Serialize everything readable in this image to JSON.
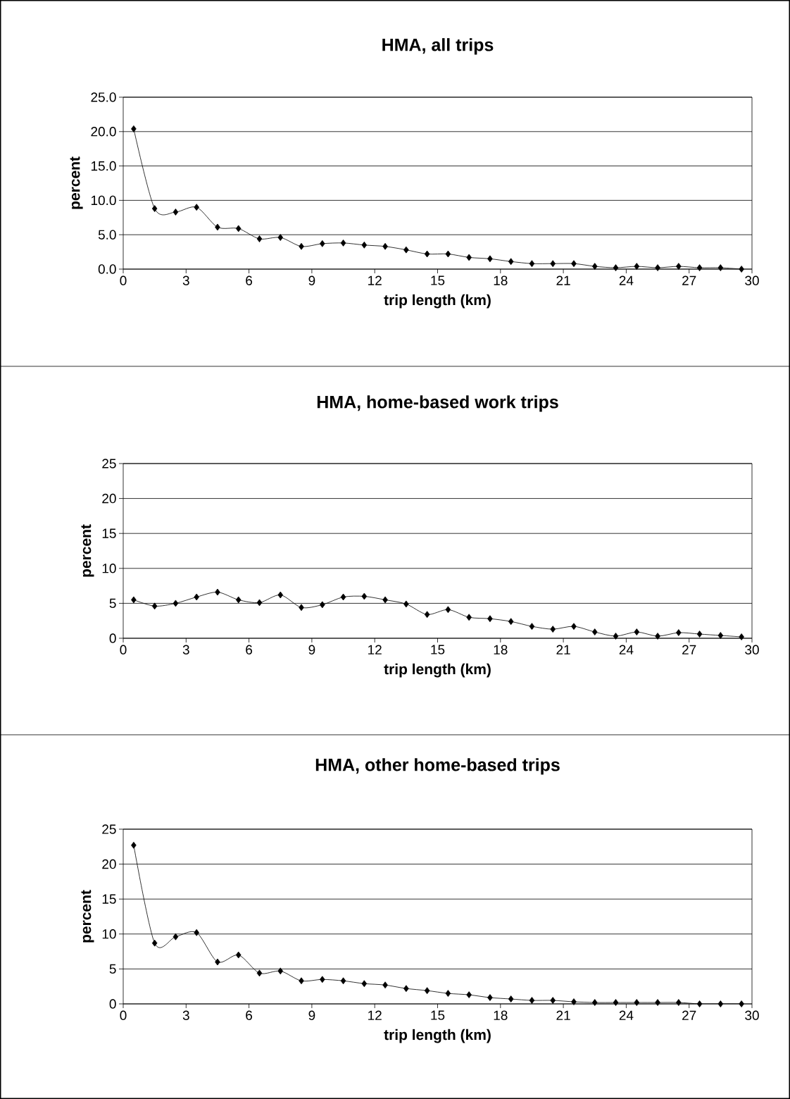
{
  "chart_data": [
    {
      "type": "line",
      "title": "HMA, all trips",
      "xlabel": "trip length (km)",
      "ylabel": "percent",
      "x": [
        0.5,
        1.5,
        2.5,
        3.5,
        4.5,
        5.5,
        6.5,
        7.5,
        8.5,
        9.5,
        10.5,
        11.5,
        12.5,
        13.5,
        14.5,
        15.5,
        16.5,
        17.5,
        18.5,
        19.5,
        20.5,
        21.5,
        22.5,
        23.5,
        24.5,
        25.5,
        26.5,
        27.5,
        28.5,
        29.5
      ],
      "series": [
        {
          "color": "#000000",
          "values": [
            20.4,
            8.8,
            8.3,
            9.0,
            6.1,
            5.9,
            4.4,
            4.6,
            3.3,
            3.7,
            3.8,
            3.5,
            3.3,
            2.8,
            2.2,
            2.2,
            1.7,
            1.5,
            1.1,
            0.8,
            0.8,
            0.8,
            0.4,
            0.2,
            0.4,
            0.2,
            0.4,
            0.2,
            0.2,
            0.0
          ]
        }
      ],
      "xlim": [
        0,
        30
      ],
      "ylim": [
        0,
        25
      ],
      "xticks": [
        0,
        3,
        6,
        9,
        12,
        15,
        18,
        21,
        24,
        27,
        30
      ],
      "yticks": [
        {
          "value": 0,
          "label": "0.0"
        },
        {
          "value": 5,
          "label": "5.0"
        },
        {
          "value": 10,
          "label": "10.0"
        },
        {
          "value": 15,
          "label": "15.0"
        },
        {
          "value": 20,
          "label": "20.0"
        },
        {
          "value": 25,
          "label": "25.0"
        }
      ],
      "grid": "y",
      "marker": "diamond",
      "line_style": "solid"
    },
    {
      "type": "line",
      "title": "HMA, home-based work trips",
      "xlabel": "trip length (km)",
      "ylabel": "percent",
      "x": [
        0.5,
        1.5,
        2.5,
        3.5,
        4.5,
        5.5,
        6.5,
        7.5,
        8.5,
        9.5,
        10.5,
        11.5,
        12.5,
        13.5,
        14.5,
        15.5,
        16.5,
        17.5,
        18.5,
        19.5,
        20.5,
        21.5,
        22.5,
        23.5,
        24.5,
        25.5,
        26.5,
        27.5,
        28.5,
        29.5
      ],
      "series": [
        {
          "color": "#000000",
          "values": [
            5.5,
            4.6,
            5.0,
            5.9,
            6.6,
            5.5,
            5.1,
            6.2,
            4.4,
            4.8,
            5.9,
            6.0,
            5.5,
            4.9,
            3.4,
            4.1,
            3.0,
            2.8,
            2.4,
            1.7,
            1.3,
            1.7,
            0.9,
            0.3,
            0.9,
            0.3,
            0.8,
            0.6,
            0.4,
            0.2
          ]
        }
      ],
      "xlim": [
        0,
        30
      ],
      "ylim": [
        0,
        25
      ],
      "xticks": [
        0,
        3,
        6,
        9,
        12,
        15,
        18,
        21,
        24,
        27,
        30
      ],
      "yticks": [
        0,
        5,
        10,
        15,
        20,
        25
      ],
      "grid": "y",
      "marker": "diamond",
      "line_style": "solid"
    },
    {
      "type": "line",
      "title": "HMA, other home-based trips",
      "xlabel": "trip length (km)",
      "ylabel": "percent",
      "x": [
        0.5,
        1.5,
        2.5,
        3.5,
        4.5,
        5.5,
        6.5,
        7.5,
        8.5,
        9.5,
        10.5,
        11.5,
        12.5,
        13.5,
        14.5,
        15.5,
        16.5,
        17.5,
        18.5,
        19.5,
        20.5,
        21.5,
        22.5,
        23.5,
        24.5,
        25.5,
        26.5,
        27.5,
        28.5,
        29.5
      ],
      "series": [
        {
          "color": "#000000",
          "values": [
            22.7,
            8.7,
            9.6,
            10.2,
            6.0,
            7.0,
            4.4,
            4.7,
            3.3,
            3.5,
            3.3,
            2.9,
            2.7,
            2.2,
            1.9,
            1.5,
            1.3,
            0.9,
            0.7,
            0.5,
            0.5,
            0.3,
            0.2,
            0.2,
            0.2,
            0.2,
            0.2,
            0.0,
            0.0,
            0.0
          ]
        }
      ],
      "xlim": [
        0,
        30
      ],
      "ylim": [
        0,
        25
      ],
      "xticks": [
        0,
        3,
        6,
        9,
        12,
        15,
        18,
        21,
        24,
        27,
        30
      ],
      "yticks": [
        0,
        5,
        10,
        15,
        20,
        25
      ],
      "grid": "y",
      "marker": "diamond",
      "line_style": "solid"
    }
  ]
}
